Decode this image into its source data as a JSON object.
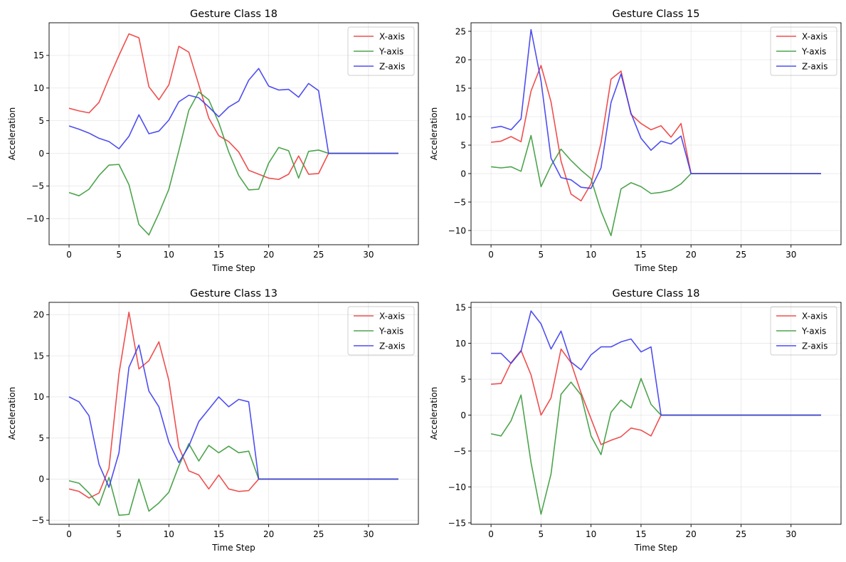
{
  "chart_data": [
    {
      "type": "line",
      "title": "Gesture Class 18",
      "xlabel": "Time Step",
      "ylabel": "Acceleration",
      "xlim": [
        -2,
        35
      ],
      "ylim": [
        -14,
        20
      ],
      "xticks": [
        0,
        5,
        10,
        15,
        20,
        25,
        30
      ],
      "yticks": [
        -10,
        -5,
        0,
        5,
        10,
        15
      ],
      "grid": true,
      "legend": "top-right",
      "x": [
        0,
        1,
        2,
        3,
        4,
        5,
        6,
        7,
        8,
        9,
        10,
        11,
        12,
        13,
        14,
        15,
        16,
        17,
        18,
        19,
        20,
        21,
        22,
        23,
        24,
        25,
        26,
        27,
        28,
        29,
        30,
        31,
        32,
        33
      ],
      "series": [
        {
          "name": "X-axis",
          "color": "#ee3b3b",
          "values": [
            6.9,
            6.5,
            6.2,
            7.8,
            11.5,
            15.0,
            18.3,
            17.7,
            10.2,
            8.2,
            10.5,
            16.4,
            15.5,
            10.5,
            5.4,
            2.7,
            1.8,
            0.2,
            -2.6,
            -3.2,
            -3.8,
            -4.0,
            -3.2,
            -0.4,
            -3.2,
            -3.1,
            0,
            0,
            0,
            0,
            0,
            0,
            0,
            0
          ]
        },
        {
          "name": "Y-axis",
          "color": "#3a9a3a",
          "values": [
            -6.0,
            -6.5,
            -5.5,
            -3.4,
            -1.8,
            -1.7,
            -4.8,
            -10.9,
            -12.5,
            -9.2,
            -5.5,
            0.4,
            6.6,
            9.4,
            8.2,
            4.7,
            0.2,
            -3.4,
            -5.6,
            -5.5,
            -1.5,
            0.9,
            0.4,
            -3.8,
            0.3,
            0.5,
            0,
            0,
            0,
            0,
            0,
            0,
            0,
            0
          ]
        },
        {
          "name": "Z-axis",
          "color": "#3b3bee",
          "values": [
            4.2,
            3.7,
            3.1,
            2.3,
            1.8,
            0.7,
            2.6,
            5.9,
            3.0,
            3.4,
            5.1,
            7.9,
            8.9,
            8.5,
            7.1,
            5.6,
            7.1,
            8.0,
            11.2,
            13.0,
            10.3,
            9.7,
            9.8,
            8.6,
            10.7,
            9.6,
            0,
            0,
            0,
            0,
            0,
            0,
            0,
            0
          ]
        }
      ]
    },
    {
      "type": "line",
      "title": "Gesture Class 15",
      "xlabel": "Time Step",
      "ylabel": "Acceleration",
      "xlim": [
        -2,
        35
      ],
      "ylim": [
        -12.5,
        26.5
      ],
      "xticks": [
        0,
        5,
        10,
        15,
        20,
        25,
        30
      ],
      "yticks": [
        -10,
        -5,
        0,
        5,
        10,
        15,
        20,
        25
      ],
      "grid": true,
      "legend": "top-right",
      "x": [
        0,
        1,
        2,
        3,
        4,
        5,
        6,
        7,
        8,
        9,
        10,
        11,
        12,
        13,
        14,
        15,
        16,
        17,
        18,
        19,
        20,
        21,
        22,
        23,
        24,
        25,
        26,
        27,
        28,
        29,
        30,
        31,
        32,
        33
      ],
      "series": [
        {
          "name": "X-axis",
          "color": "#ee3b3b",
          "values": [
            5.5,
            5.7,
            6.5,
            5.6,
            14.5,
            19.0,
            12.6,
            2.2,
            -3.6,
            -4.8,
            -1.8,
            5.4,
            16.6,
            18.0,
            10.4,
            8.8,
            7.7,
            8.4,
            6.4,
            8.8,
            0,
            0,
            0,
            0,
            0,
            0,
            0,
            0,
            0,
            0,
            0,
            0,
            0,
            0
          ]
        },
        {
          "name": "Y-axis",
          "color": "#3a9a3a",
          "values": [
            1.2,
            1.0,
            1.2,
            0.4,
            6.7,
            -2.3,
            1.4,
            4.3,
            2.3,
            0.6,
            -0.9,
            -6.6,
            -10.9,
            -2.7,
            -1.6,
            -2.3,
            -3.5,
            -3.3,
            -2.9,
            -1.8,
            0,
            0,
            0,
            0,
            0,
            0,
            0,
            0,
            0,
            0,
            0,
            0,
            0,
            0
          ]
        },
        {
          "name": "Z-axis",
          "color": "#3b3bee",
          "values": [
            8.0,
            8.3,
            7.7,
            9.6,
            25.3,
            16.3,
            2.7,
            -0.7,
            -1.1,
            -2.4,
            -2.6,
            1.0,
            12.5,
            17.5,
            10.6,
            6.2,
            4.1,
            5.7,
            5.2,
            6.6,
            0,
            0,
            0,
            0,
            0,
            0,
            0,
            0,
            0,
            0,
            0,
            0,
            0,
            0
          ]
        }
      ]
    },
    {
      "type": "line",
      "title": "Gesture Class 13",
      "xlabel": "Time Step",
      "ylabel": "Acceleration",
      "xlim": [
        -2,
        35
      ],
      "ylim": [
        -5.5,
        21.5
      ],
      "xticks": [
        0,
        5,
        10,
        15,
        20,
        25,
        30
      ],
      "yticks": [
        -5,
        0,
        5,
        10,
        15,
        20
      ],
      "grid": true,
      "legend": "top-right",
      "x": [
        0,
        1,
        2,
        3,
        4,
        5,
        6,
        7,
        8,
        9,
        10,
        11,
        12,
        13,
        14,
        15,
        16,
        17,
        18,
        19,
        20,
        21,
        22,
        23,
        24,
        25,
        26,
        27,
        28,
        29,
        30,
        31,
        32,
        33
      ],
      "series": [
        {
          "name": "X-axis",
          "color": "#ee3b3b",
          "values": [
            -1.2,
            -1.5,
            -2.3,
            -1.7,
            1.3,
            12.8,
            20.3,
            13.4,
            14.4,
            16.7,
            12.0,
            3.9,
            1.0,
            0.5,
            -1.2,
            0.5,
            -1.2,
            -1.5,
            -1.4,
            0,
            0,
            0,
            0,
            0,
            0,
            0,
            0,
            0,
            0,
            0,
            0,
            0,
            0,
            0
          ]
        },
        {
          "name": "Y-axis",
          "color": "#3a9a3a",
          "values": [
            -0.2,
            -0.5,
            -1.7,
            -3.2,
            0.2,
            -4.4,
            -4.3,
            0.0,
            -3.9,
            -2.9,
            -1.6,
            1.6,
            4.3,
            2.2,
            4.1,
            3.2,
            4.0,
            3.2,
            3.4,
            0,
            0,
            0,
            0,
            0,
            0,
            0,
            0,
            0,
            0,
            0,
            0,
            0,
            0,
            0
          ]
        },
        {
          "name": "Z-axis",
          "color": "#3b3bee",
          "values": [
            10.0,
            9.4,
            7.7,
            1.8,
            -1.0,
            3.2,
            13.6,
            16.3,
            10.7,
            8.8,
            4.5,
            2.0,
            4.0,
            7.0,
            8.5,
            10.0,
            8.8,
            9.7,
            9.4,
            0,
            0,
            0,
            0,
            0,
            0,
            0,
            0,
            0,
            0,
            0,
            0,
            0,
            0,
            0
          ]
        }
      ]
    },
    {
      "type": "line",
      "title": "Gesture Class 18",
      "xlabel": "Time Step",
      "ylabel": "Acceleration",
      "xlim": [
        -2,
        35
      ],
      "ylim": [
        -15.2,
        15.7
      ],
      "xticks": [
        0,
        5,
        10,
        15,
        20,
        25,
        30
      ],
      "yticks": [
        -15,
        -10,
        -5,
        0,
        5,
        10,
        15
      ],
      "grid": true,
      "legend": "top-right",
      "x": [
        0,
        1,
        2,
        3,
        4,
        5,
        6,
        7,
        8,
        9,
        10,
        11,
        12,
        13,
        14,
        15,
        16,
        17,
        18,
        19,
        20,
        21,
        22,
        23,
        24,
        25,
        26,
        27,
        28,
        29,
        30,
        31,
        32,
        33
      ],
      "series": [
        {
          "name": "X-axis",
          "color": "#ee3b3b",
          "values": [
            4.3,
            4.4,
            7.3,
            9.0,
            5.6,
            0.0,
            2.4,
            9.2,
            7.3,
            3.1,
            -0.5,
            -4.1,
            -3.5,
            -3.0,
            -1.8,
            -2.1,
            -2.9,
            0,
            0,
            0,
            0,
            0,
            0,
            0,
            0,
            0,
            0,
            0,
            0,
            0,
            0,
            0,
            0,
            0
          ]
        },
        {
          "name": "Y-axis",
          "color": "#3a9a3a",
          "values": [
            -2.6,
            -2.9,
            -0.8,
            2.8,
            -6.6,
            -13.8,
            -8.2,
            2.9,
            4.6,
            2.8,
            -2.9,
            -5.5,
            0.4,
            2.1,
            1.0,
            5.1,
            1.5,
            0,
            0,
            0,
            0,
            0,
            0,
            0,
            0,
            0,
            0,
            0,
            0,
            0,
            0,
            0,
            0,
            0
          ]
        },
        {
          "name": "Z-axis",
          "color": "#3b3bee",
          "values": [
            8.6,
            8.6,
            7.2,
            8.9,
            14.5,
            12.7,
            9.2,
            11.7,
            7.4,
            6.3,
            8.4,
            9.5,
            9.5,
            10.2,
            10.6,
            8.8,
            9.5,
            0,
            0,
            0,
            0,
            0,
            0,
            0,
            0,
            0,
            0,
            0,
            0,
            0,
            0,
            0,
            0,
            0
          ]
        }
      ]
    }
  ]
}
